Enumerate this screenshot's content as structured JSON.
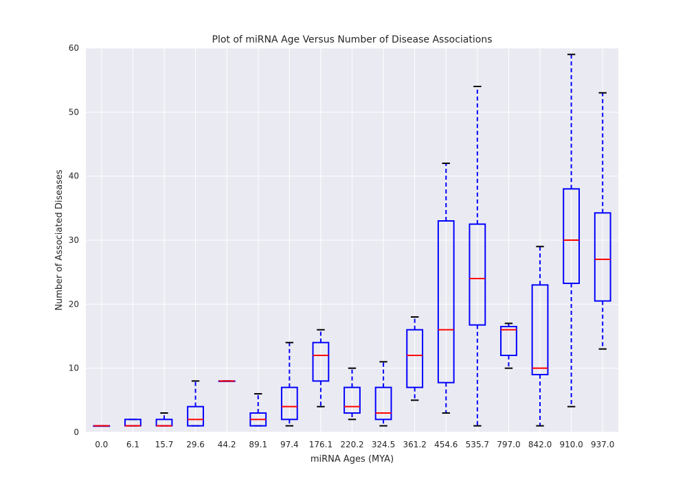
{
  "chart_data": {
    "type": "box",
    "title": "Plot of miRNA Age Versus Number of Disease Associations",
    "xlabel": "miRNA Ages (MYA)",
    "ylabel": "Number of Associated Diseases",
    "ylim": [
      0,
      60
    ],
    "yticks": [
      0,
      10,
      20,
      30,
      40,
      50,
      60
    ],
    "grid": true,
    "colors": {
      "background": "#EAEAF2",
      "grid": "#FFFFFF",
      "box": "#0000FF",
      "median": "#FF0000",
      "cap": "#000000"
    },
    "categories": [
      "0.0",
      "6.1",
      "15.7",
      "29.6",
      "44.2",
      "89.1",
      "97.4",
      "176.1",
      "220.2",
      "324.5",
      "361.2",
      "454.6",
      "535.7",
      "797.0",
      "842.0",
      "910.0",
      "937.0"
    ],
    "boxes": [
      {
        "min": 1,
        "q1": 1,
        "median": 1,
        "q3": 1,
        "max": 1
      },
      {
        "min": 1,
        "q1": 1,
        "median": 1,
        "q3": 2,
        "max": 2
      },
      {
        "min": 1,
        "q1": 1,
        "median": 1,
        "q3": 2,
        "max": 3
      },
      {
        "min": 1,
        "q1": 1,
        "median": 2,
        "q3": 4,
        "max": 8
      },
      {
        "min": 8,
        "q1": 8,
        "median": 8,
        "q3": 8,
        "max": 8
      },
      {
        "min": 1,
        "q1": 1,
        "median": 2,
        "q3": 3,
        "max": 6
      },
      {
        "min": 1,
        "q1": 2,
        "median": 4,
        "q3": 7,
        "max": 14
      },
      {
        "min": 4,
        "q1": 8,
        "median": 12,
        "q3": 14,
        "max": 16
      },
      {
        "min": 2,
        "q1": 3,
        "median": 4,
        "q3": 7,
        "max": 10
      },
      {
        "min": 1,
        "q1": 2,
        "median": 3,
        "q3": 7,
        "max": 11
      },
      {
        "min": 5,
        "q1": 7,
        "median": 12,
        "q3": 16,
        "max": 18
      },
      {
        "min": 3,
        "q1": 7.75,
        "median": 16,
        "q3": 33,
        "max": 42
      },
      {
        "min": 1,
        "q1": 16.75,
        "median": 24,
        "q3": 32.5,
        "max": 54
      },
      {
        "min": 10,
        "q1": 12,
        "median": 16,
        "q3": 16.5,
        "max": 17
      },
      {
        "min": 1,
        "q1": 9,
        "median": 10,
        "q3": 23,
        "max": 29
      },
      {
        "min": 4,
        "q1": 23.25,
        "median": 30,
        "q3": 38,
        "max": 59
      },
      {
        "min": 13,
        "q1": 20.5,
        "median": 27,
        "q3": 34.25,
        "max": 53
      }
    ]
  }
}
